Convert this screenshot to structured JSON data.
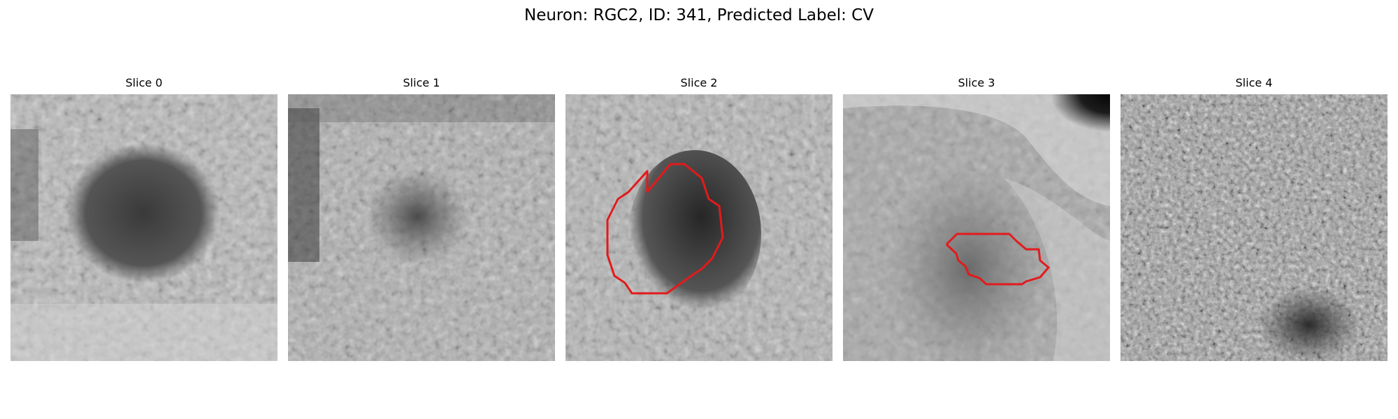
{
  "figure": {
    "title": "Neuron: RGC2, ID: 341, Predicted Label: CV"
  },
  "slices": [
    {
      "title": "Slice 0",
      "has_contour": false
    },
    {
      "title": "Slice 1",
      "has_contour": false
    },
    {
      "title": "Slice 2",
      "has_contour": true
    },
    {
      "title": "Slice 3",
      "has_contour": true
    },
    {
      "title": "Slice 4",
      "has_contour": false
    }
  ],
  "colors": {
    "contour": "#e31a1c",
    "background": "#ffffff"
  }
}
